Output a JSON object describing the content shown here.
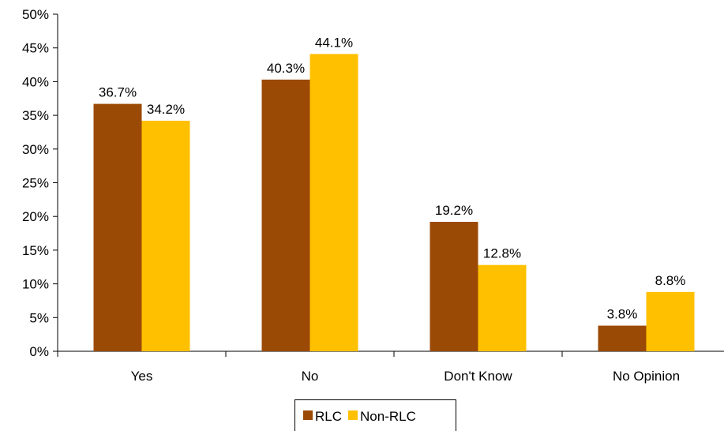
{
  "chart_data": {
    "type": "bar",
    "title": "",
    "xlabel": "",
    "ylabel": "",
    "categories": [
      "Yes",
      "No",
      "Don't Know",
      "No Opinion"
    ],
    "series": [
      {
        "name": "RLC",
        "values": [
          36.7,
          40.3,
          19.2,
          3.8
        ],
        "labels": [
          "36.7%",
          "40.3%",
          "19.2%",
          "3.8%"
        ],
        "color": "#9B4A05"
      },
      {
        "name": "Non-RLC",
        "values": [
          34.2,
          44.1,
          12.8,
          8.8
        ],
        "labels": [
          "34.2%",
          "44.1%",
          "12.8%",
          "8.8%"
        ],
        "color": "#FFC000"
      }
    ],
    "ylim": [
      0,
      50
    ],
    "yticks": [
      0,
      5,
      10,
      15,
      20,
      25,
      30,
      35,
      40,
      45,
      50
    ],
    "ytick_labels": [
      "0%",
      "5%",
      "10%",
      "15%",
      "20%",
      "25%",
      "30%",
      "35%",
      "40%",
      "45%",
      "50%"
    ],
    "grid": false,
    "legend_position": "bottom-center"
  }
}
